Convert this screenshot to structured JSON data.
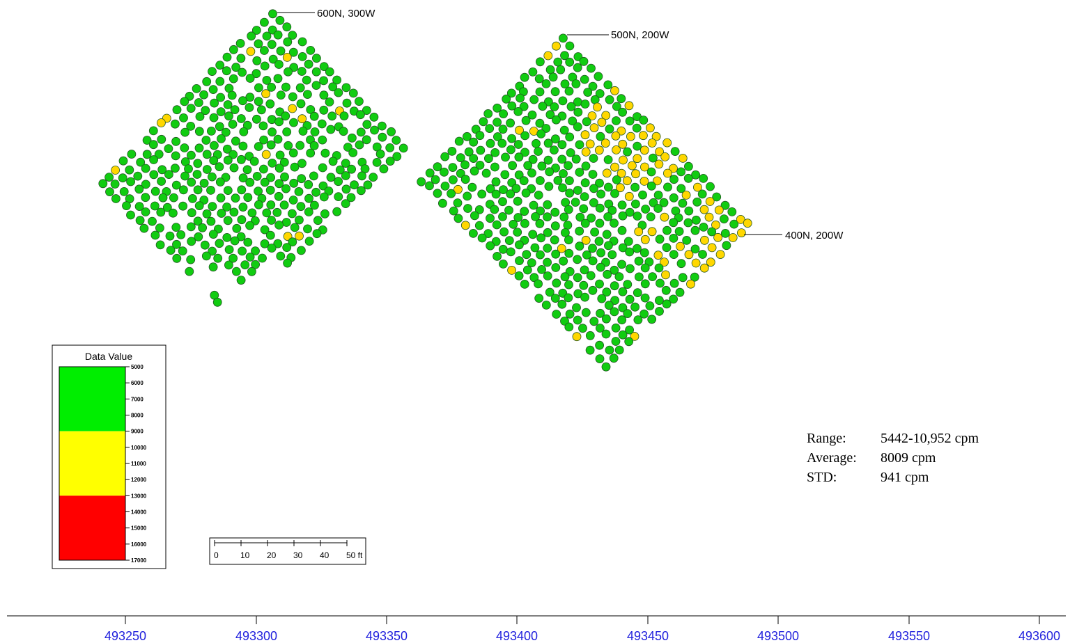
{
  "callouts": [
    {
      "label": "600N, 300W"
    },
    {
      "label": "500N, 200W"
    },
    {
      "label": "400N, 200W"
    }
  ],
  "legend": {
    "title": "Data Value",
    "ticks": [
      "5000",
      "6000",
      "7000",
      "8000",
      "9000",
      "10000",
      "11000",
      "12000",
      "13000",
      "14000",
      "15000",
      "16000",
      "17000"
    ],
    "bands": [
      {
        "from": 5000,
        "to": 9000,
        "color": "#00ee00"
      },
      {
        "from": 9000,
        "to": 13000,
        "color": "#ffff00"
      },
      {
        "from": 13000,
        "to": 17000,
        "color": "#ff0000"
      }
    ]
  },
  "scale_bar": {
    "labels": [
      "0",
      "10",
      "20",
      "30",
      "40",
      "50 ft"
    ]
  },
  "stats": {
    "range_label": "Range:",
    "range_value": "5442-10,952 cpm",
    "average_label": "Average:",
    "average_value": "8009 cpm",
    "std_label": "STD:",
    "std_value": "941 cpm"
  },
  "x_axis": {
    "ticks": [
      "493250",
      "493300",
      "493350",
      "493400",
      "493450",
      "493500",
      "493550",
      "493600"
    ]
  },
  "points": {
    "low_color": "#11cc11",
    "high_color": "#ffd700",
    "outline_color": "#225522"
  }
}
